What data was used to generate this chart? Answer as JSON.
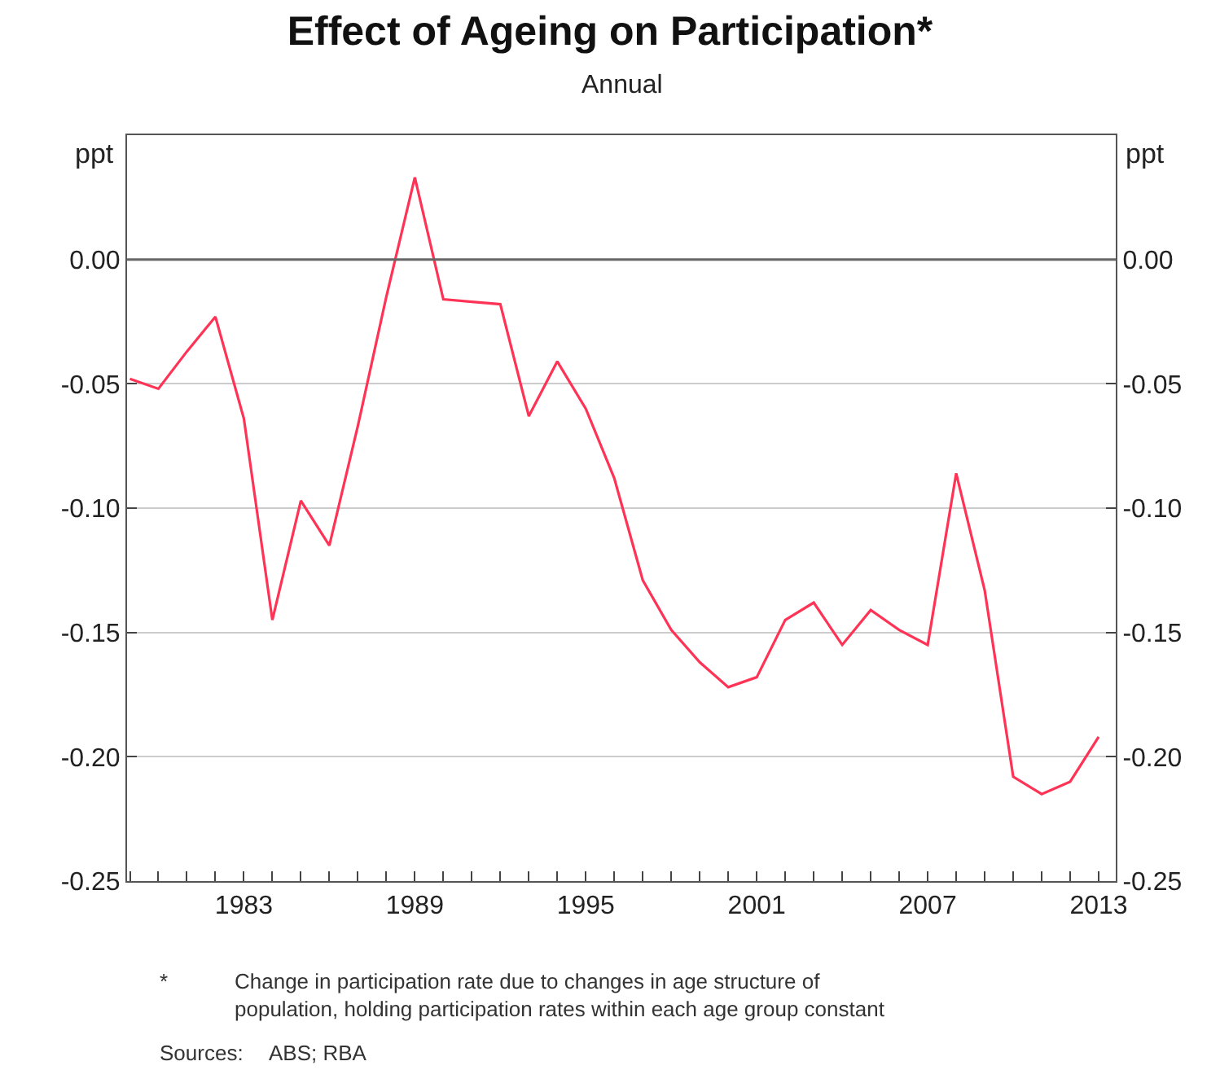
{
  "chart_data": {
    "type": "line",
    "title": "Effect of Ageing on Participation*",
    "subtitle": "Annual",
    "ylabel": "ppt",
    "y2label": "ppt",
    "x": [
      1979,
      1980,
      1981,
      1982,
      1983,
      1984,
      1985,
      1986,
      1987,
      1988,
      1989,
      1990,
      1991,
      1992,
      1993,
      1994,
      1995,
      1996,
      1997,
      1998,
      1999,
      2000,
      2001,
      2002,
      2003,
      2004,
      2005,
      2006,
      2007,
      2008,
      2009,
      2010,
      2011,
      2012,
      2013
    ],
    "series": [
      {
        "color": "#ff3355",
        "values": [
          -0.048,
          -0.052,
          -0.037,
          -0.023,
          -0.064,
          -0.145,
          -0.097,
          -0.115,
          -0.067,
          -0.015,
          0.033,
          -0.016,
          -0.017,
          -0.018,
          -0.063,
          -0.041,
          -0.06,
          -0.088,
          -0.129,
          -0.149,
          -0.162,
          -0.172,
          -0.168,
          -0.145,
          -0.138,
          -0.155,
          -0.141,
          -0.149,
          -0.155,
          -0.086,
          -0.133,
          -0.208,
          -0.215,
          -0.21,
          -0.192
        ]
      }
    ],
    "xlim": [
      1978.9,
      2013.6
    ],
    "xticks": [
      {
        "value": 1979,
        "label": null
      },
      {
        "value": 1980,
        "label": null
      },
      {
        "value": 1981,
        "label": null
      },
      {
        "value": 1982,
        "label": null
      },
      1983,
      {
        "value": 1984,
        "label": null
      },
      {
        "value": 1985,
        "label": null
      },
      {
        "value": 1986,
        "label": null
      },
      {
        "value": 1987,
        "label": null
      },
      {
        "value": 1988,
        "label": null
      },
      1989,
      {
        "value": 1990,
        "label": null
      },
      {
        "value": 1991,
        "label": null
      },
      {
        "value": 1992,
        "label": null
      },
      {
        "value": 1993,
        "label": null
      },
      {
        "value": 1994,
        "label": null
      },
      1995,
      {
        "value": 1996,
        "label": null
      },
      {
        "value": 1997,
        "label": null
      },
      {
        "value": 1998,
        "label": null
      },
      {
        "value": 1999,
        "label": null
      },
      {
        "value": 2000,
        "label": null
      },
      2001,
      {
        "value": 2002,
        "label": null
      },
      {
        "value": 2003,
        "label": null
      },
      {
        "value": 2004,
        "label": null
      },
      {
        "value": 2005,
        "label": null
      },
      {
        "value": 2006,
        "label": null
      },
      2007,
      {
        "value": 2008,
        "label": null
      },
      {
        "value": 2009,
        "label": null
      },
      {
        "value": 2010,
        "label": null
      },
      {
        "value": 2011,
        "label": null
      },
      {
        "value": 2012,
        "label": null
      },
      2013
    ],
    "ylim": [
      -0.25,
      0.05
    ],
    "yticks": [
      {
        "value": -0.25,
        "label": "-0.25"
      },
      {
        "value": -0.2,
        "label": "-0.20"
      },
      {
        "value": -0.15,
        "label": "-0.15"
      },
      {
        "value": -0.1,
        "label": "-0.10"
      },
      {
        "value": -0.05,
        "label": "-0.05"
      },
      {
        "value": 0,
        "label": "0.00"
      }
    ],
    "y2lim": [
      -0.25,
      0.05
    ],
    "y2ticks": [
      {
        "value": -0.25,
        "label": "-0.25"
      },
      {
        "value": -0.2,
        "label": "-0.20"
      },
      {
        "value": -0.15,
        "label": "-0.15"
      },
      {
        "value": -0.1,
        "label": "-0.10"
      },
      {
        "value": -0.05,
        "label": "-0.05"
      },
      {
        "value": 0,
        "label": "0.00"
      }
    ],
    "ref_lines": [
      {
        "axis": "y",
        "value": 0,
        "color": "#666666"
      }
    ],
    "grid": "y",
    "marker": "none",
    "line_style": "solid",
    "annotations": [
      "*",
      "Change in participation rate due to changes in age structure of population, holding participation rates within each age group constant",
      "Sources:",
      "ABS; RBA"
    ]
  }
}
